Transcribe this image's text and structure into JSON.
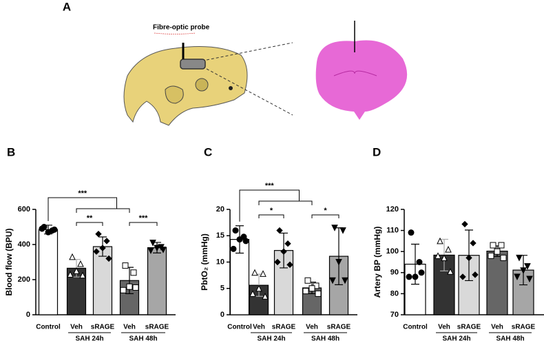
{
  "panel_a": {
    "label": "A",
    "probe_label": "Fibre-optic probe"
  },
  "chart_data": [
    {
      "type": "bar",
      "panel": "B",
      "ylabel": "Blood flow (BPU)",
      "categories": [
        "Control",
        "Veh",
        "sRAGE",
        "Veh",
        "sRAGE"
      ],
      "groups": [
        "SAH 24h",
        "SAH 48h"
      ],
      "values": [
        485,
        265,
        388,
        195,
        382
      ],
      "errors": [
        25,
        50,
        55,
        75,
        30
      ],
      "points": [
        [
          500,
          480,
          470,
          490,
          485
        ],
        [
          330,
          290,
          250,
          230,
          225
        ],
        [
          460,
          420,
          380,
          360,
          320
        ],
        [
          280,
          240,
          160,
          140,
          155
        ],
        [
          410,
          385,
          380,
          365,
          370
        ]
      ],
      "colors": [
        "#ffffff",
        "#333333",
        "#d9d9d9",
        "#666666",
        "#a6a6a6"
      ],
      "markers": [
        "circle",
        "triangle-open",
        "diamond",
        "square-open",
        "triangle-down"
      ],
      "annotations": [
        "***",
        "**",
        "***"
      ],
      "ylim": [
        0,
        600
      ],
      "yticks": [
        0,
        200,
        400,
        600
      ]
    },
    {
      "type": "bar",
      "panel": "C",
      "ylabel": "PbtO₂ (mmHg)",
      "categories": [
        "Control",
        "Veh",
        "sRAGE",
        "Veh",
        "sRAGE"
      ],
      "groups": [
        "SAH 24h",
        "SAH 48h"
      ],
      "values": [
        14.3,
        5.6,
        12.2,
        5.1,
        11.1
      ],
      "errors": [
        2.6,
        2.1,
        3.3,
        1.1,
        5.4
      ],
      "points": [
        [
          16,
          14.8,
          14.3,
          12.5,
          14
        ],
        [
          8,
          7.8,
          5,
          4,
          3.5
        ],
        [
          16,
          13.5,
          12,
          10,
          9.5
        ],
        [
          6.5,
          5.5,
          5,
          4.5,
          4
        ],
        [
          16.5,
          16,
          10,
          6.5,
          6.5
        ]
      ],
      "colors": [
        "#ffffff",
        "#333333",
        "#d9d9d9",
        "#666666",
        "#a6a6a6"
      ],
      "markers": [
        "circle",
        "triangle-open",
        "diamond",
        "square-open",
        "triangle-down"
      ],
      "annotations": [
        "***",
        "*",
        "*"
      ],
      "ylim": [
        0,
        20
      ],
      "yticks": [
        0,
        5,
        10,
        15,
        20
      ]
    },
    {
      "type": "bar",
      "panel": "D",
      "ylabel": "Artery BP (mmHg)",
      "categories": [
        "Control",
        "Veh",
        "sRAGE",
        "Veh",
        "sRAGE"
      ],
      "groups": [
        "SAH 24h",
        "SAH 48h"
      ],
      "values": [
        94,
        98.3,
        98.2,
        100.2,
        91.2
      ],
      "errors": [
        9.5,
        7.5,
        12,
        2.5,
        7
      ],
      "points": [
        [
          109,
          95,
          88,
          88,
          90
        ],
        [
          105,
          101,
          97,
          98,
          90.5
        ],
        [
          113,
          104,
          97,
          88,
          89
        ],
        [
          103,
          103,
          100,
          98,
          97
        ],
        [
          97,
          93,
          91,
          88,
          87
        ]
      ],
      "colors": [
        "#ffffff",
        "#333333",
        "#d9d9d9",
        "#666666",
        "#a6a6a6"
      ],
      "markers": [
        "circle",
        "triangle-open",
        "diamond",
        "square-open",
        "triangle-down"
      ],
      "annotations": [],
      "ylim": [
        70,
        120
      ],
      "yticks": [
        70,
        80,
        90,
        100,
        110,
        120
      ]
    }
  ]
}
